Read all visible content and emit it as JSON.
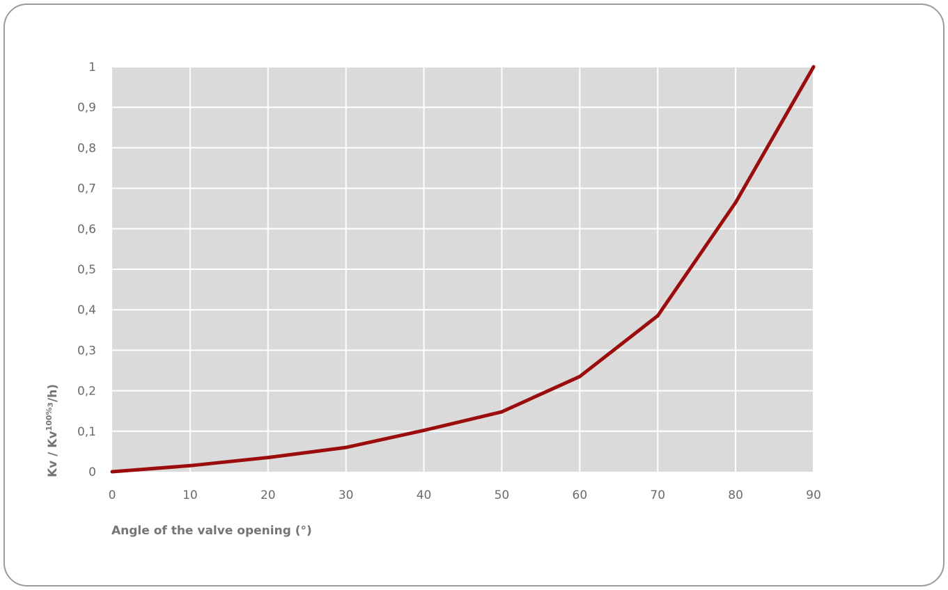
{
  "chart_data": {
    "type": "line",
    "title": "",
    "xlabel": "Angle of the valve opening (°)",
    "ylabel": {
      "prefix": "Kv / Kv",
      "superscript": "100%",
      "suffix": "³/h)"
    },
    "x": [
      0,
      10,
      20,
      30,
      40,
      50,
      60,
      70,
      80,
      90
    ],
    "series": [
      {
        "values": [
          0,
          0.015,
          0.035,
          0.06,
          0.102,
          0.148,
          0.235,
          0.385,
          0.665,
          1.0
        ]
      }
    ],
    "xlim": [
      0,
      90
    ],
    "ylim": [
      0,
      1
    ],
    "x_ticks": [
      0,
      10,
      20,
      30,
      40,
      50,
      60,
      70,
      80,
      90
    ],
    "x_tick_labels": [
      "0",
      "10",
      "20",
      "30",
      "40",
      "50",
      "60",
      "70",
      "80",
      "90"
    ],
    "y_ticks": [
      0,
      0.1,
      0.2,
      0.3,
      0.4,
      0.5,
      0.6,
      0.7,
      0.8,
      0.9,
      1
    ],
    "y_tick_labels": [
      "0",
      "0,1",
      "0,2",
      "0,3",
      "0,4",
      "0,5",
      "0,6",
      "0,7",
      "0,8",
      "0,9",
      "1"
    ],
    "grid": true,
    "legend": "none",
    "colors": {
      "plot_background": "#dadada",
      "grid": "#ffffff",
      "line": "#9b0d0d"
    }
  }
}
